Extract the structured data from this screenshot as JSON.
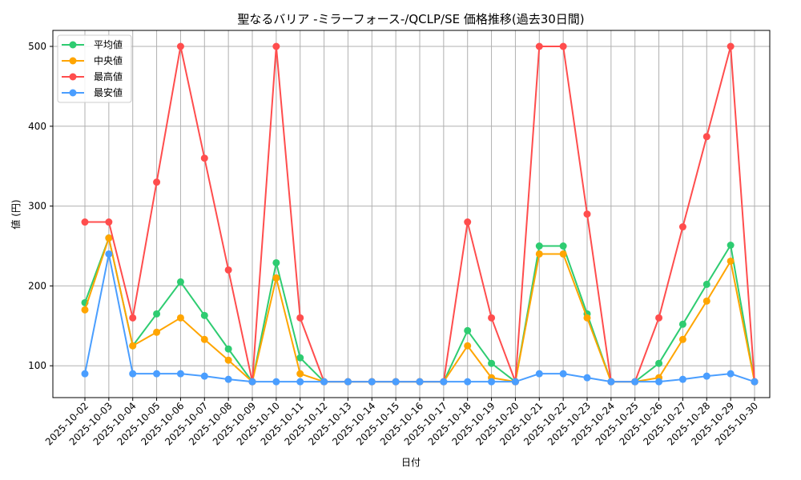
{
  "chart_data": {
    "type": "line",
    "title": "聖なるバリア -ミラーフォース-/QCLP/SE 価格推移(過去30日間)",
    "xlabel": "日付",
    "ylabel": "値 (円)",
    "ylim": [
      60,
      520
    ],
    "yticks": [
      100,
      200,
      300,
      400,
      500
    ],
    "grid": true,
    "legend_position": "upper left",
    "categories": [
      "2025-10-02",
      "2025-10-03",
      "2025-10-04",
      "2025-10-05",
      "2025-10-06",
      "2025-10-07",
      "2025-10-08",
      "2025-10-09",
      "2025-10-10",
      "2025-10-11",
      "2025-10-12",
      "2025-10-13",
      "2025-10-14",
      "2025-10-15",
      "2025-10-16",
      "2025-10-17",
      "2025-10-18",
      "2025-10-19",
      "2025-10-20",
      "2025-10-21",
      "2025-10-22",
      "2025-10-23",
      "2025-10-24",
      "2025-10-25",
      "2025-10-26",
      "2025-10-27",
      "2025-10-28",
      "2025-10-29",
      "2025-10-30"
    ],
    "series": [
      {
        "name": "平均値",
        "color": "#2ecc71",
        "values": [
          179,
          260,
          125,
          165,
          205,
          163,
          121,
          80,
          229,
          110,
          80,
          80,
          80,
          80,
          80,
          80,
          144,
          103,
          80,
          250,
          250,
          165,
          80,
          80,
          103,
          152,
          202,
          251,
          80
        ]
      },
      {
        "name": "中央値",
        "color": "#ffa500",
        "values": [
          170,
          260,
          125,
          142,
          160,
          133,
          107,
          80,
          210,
          90,
          80,
          80,
          80,
          80,
          80,
          80,
          125,
          85,
          80,
          240,
          240,
          160,
          80,
          80,
          85,
          133,
          181,
          231,
          80
        ]
      },
      {
        "name": "最高値",
        "color": "#ff4d4d",
        "values": [
          280,
          280,
          160,
          330,
          500,
          360,
          220,
          80,
          500,
          160,
          80,
          80,
          80,
          80,
          80,
          80,
          280,
          160,
          80,
          500,
          500,
          290,
          80,
          80,
          160,
          274,
          387,
          500,
          80
        ]
      },
      {
        "name": "最安値",
        "color": "#4a9eff",
        "values": [
          90,
          240,
          90,
          90,
          90,
          87,
          83,
          80,
          80,
          80,
          80,
          80,
          80,
          80,
          80,
          80,
          80,
          80,
          80,
          90,
          90,
          85,
          80,
          80,
          80,
          83,
          87,
          90,
          80
        ]
      }
    ]
  }
}
